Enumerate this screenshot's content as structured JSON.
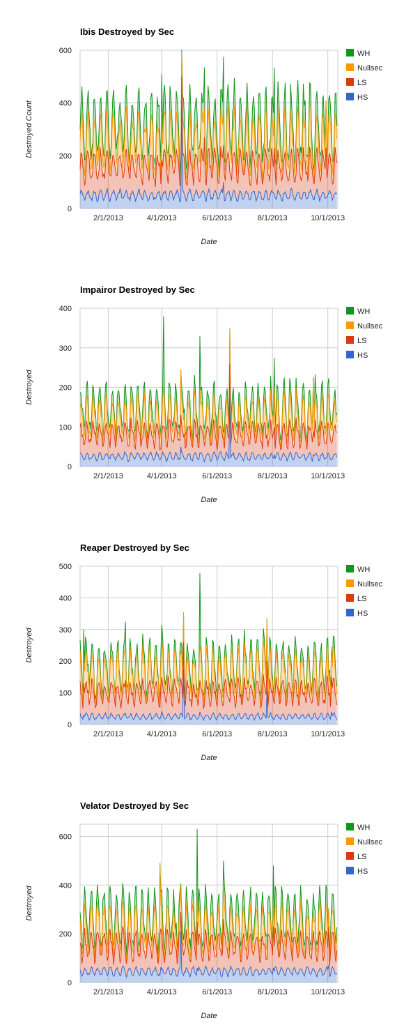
{
  "legend_position": "right",
  "chart_data": [
    {
      "type": "area",
      "stacked": true,
      "title": "Ibis Destroyed by Sec",
      "xlabel": "Date",
      "ylabel": "Destroyed Count",
      "x_range": [
        "1/1/2013",
        "10/12/2013"
      ],
      "x_ticks": [
        "2/1/2013",
        "4/1/2013",
        "6/1/2013",
        "8/1/2013",
        "10/1/2013"
      ],
      "y_ticks": [
        0,
        200,
        400,
        600
      ],
      "ylim": [
        0,
        600
      ],
      "grid": true,
      "baselines": {
        "HS": 50,
        "LS": 160,
        "Nullsec": 250,
        "WH": 290
      },
      "spikes": [
        {
          "date": "4/1/2013",
          "HS": 35,
          "LS": 185,
          "Nullsec": 370,
          "WH": 510
        },
        {
          "date": "4/23/2013",
          "HS": 400,
          "LS": 500,
          "Nullsec": 590,
          "WH": 600
        },
        {
          "date": "5/18/2013",
          "HS": 60,
          "LS": 270,
          "Nullsec": 380,
          "WH": 535
        },
        {
          "date": "6/8/2013",
          "HS": 100,
          "LS": 240,
          "Nullsec": 370,
          "WH": 575
        },
        {
          "date": "8/3/2013",
          "HS": 55,
          "LS": 230,
          "Nullsec": 340,
          "WH": 535
        },
        {
          "date": "9/29/2013",
          "HS": 40,
          "LS": 230,
          "Nullsec": 410,
          "WH": 410
        }
      ],
      "series": [
        {
          "name": "WH",
          "color": "#109618"
        },
        {
          "name": "Nullsec",
          "color": "#ff9900"
        },
        {
          "name": "LS",
          "color": "#dc3912"
        },
        {
          "name": "HS",
          "color": "#3366cc"
        }
      ]
    },
    {
      "type": "area",
      "stacked": true,
      "title": "Impairor Destroyed by Sec",
      "xlabel": "Date",
      "ylabel": "Destroyed",
      "x_range": [
        "1/1/2013",
        "10/12/2013"
      ],
      "x_ticks": [
        "2/1/2013",
        "4/1/2013",
        "6/1/2013",
        "8/1/2013",
        "10/1/2013"
      ],
      "y_ticks": [
        0,
        100,
        200,
        300,
        400
      ],
      "ylim": [
        0,
        400
      ],
      "grid": true,
      "baselines": {
        "HS": 25,
        "LS": 80,
        "Nullsec": 120,
        "WH": 135
      },
      "spikes": [
        {
          "date": "4/3/2013",
          "HS": 30,
          "LS": 100,
          "Nullsec": 200,
          "WH": 380
        },
        {
          "date": "4/22/2013",
          "HS": 50,
          "LS": 130,
          "Nullsec": 245,
          "WH": 245
        },
        {
          "date": "5/13/2013",
          "HS": 35,
          "LS": 100,
          "Nullsec": 200,
          "WH": 330
        },
        {
          "date": "6/15/2013",
          "HS": 175,
          "LS": 260,
          "Nullsec": 350,
          "WH": 350
        },
        {
          "date": "8/3/2013",
          "HS": 30,
          "LS": 100,
          "Nullsec": 200,
          "WH": 275
        },
        {
          "date": "9/15/2013",
          "HS": 30,
          "LS": 90,
          "Nullsec": 225,
          "WH": 225
        }
      ],
      "series": [
        {
          "name": "WH",
          "color": "#109618"
        },
        {
          "name": "Nullsec",
          "color": "#ff9900"
        },
        {
          "name": "LS",
          "color": "#dc3912"
        },
        {
          "name": "HS",
          "color": "#3366cc"
        }
      ]
    },
    {
      "type": "area",
      "stacked": true,
      "title": "Reaper Destroyed by Sec",
      "xlabel": "Date",
      "ylabel": "Destroyed",
      "x_range": [
        "1/1/2013",
        "10/12/2013"
      ],
      "x_ticks": [
        "2/1/2013",
        "4/1/2013",
        "6/1/2013",
        "8/1/2013",
        "10/1/2013"
      ],
      "y_ticks": [
        0,
        100,
        200,
        300,
        400,
        500
      ],
      "ylim": [
        0,
        500
      ],
      "grid": true,
      "baselines": {
        "HS": 25,
        "LS": 100,
        "Nullsec": 160,
        "WH": 175
      },
      "spikes": [
        {
          "date": "1/5/2013",
          "HS": 30,
          "LS": 130,
          "Nullsec": 200,
          "WH": 300
        },
        {
          "date": "2/20/2013",
          "HS": 35,
          "LS": 140,
          "Nullsec": 240,
          "WH": 325
        },
        {
          "date": "4/1/2013",
          "HS": 40,
          "LS": 150,
          "Nullsec": 250,
          "WH": 315
        },
        {
          "date": "4/25/2013",
          "HS": 175,
          "LS": 260,
          "Nullsec": 355,
          "WH": 355
        },
        {
          "date": "5/13/2013",
          "HS": 40,
          "LS": 140,
          "Nullsec": 250,
          "WH": 478
        },
        {
          "date": "7/26/2013",
          "HS": 105,
          "LS": 200,
          "Nullsec": 335,
          "WH": 335
        },
        {
          "date": "10/5/2013",
          "HS": 40,
          "LS": 150,
          "Nullsec": 245,
          "WH": 245
        }
      ],
      "series": [
        {
          "name": "WH",
          "color": "#109618"
        },
        {
          "name": "Nullsec",
          "color": "#ff9900"
        },
        {
          "name": "LS",
          "color": "#dc3912"
        },
        {
          "name": "HS",
          "color": "#3366cc"
        }
      ]
    },
    {
      "type": "area",
      "stacked": true,
      "title": "Velator Destroyed by Sec",
      "xlabel": "Date",
      "ylabel": "Destroyed",
      "x_range": [
        "1/1/2013",
        "10/12/2013"
      ],
      "x_ticks": [
        "2/1/2013",
        "4/1/2013",
        "6/1/2013",
        "8/1/2013",
        "10/1/2013"
      ],
      "y_ticks": [
        0,
        200,
        400,
        600
      ],
      "ylim": [
        0,
        650
      ],
      "grid": true,
      "baselines": {
        "HS": 45,
        "LS": 150,
        "Nullsec": 215,
        "WH": 245
      },
      "spikes": [
        {
          "date": "3/30/2013",
          "HS": 30,
          "LS": 200,
          "Nullsec": 490,
          "WH": 490
        },
        {
          "date": "4/22/2013",
          "HS": 210,
          "LS": 290,
          "Nullsec": 400,
          "WH": 405
        },
        {
          "date": "5/10/2013",
          "HS": 60,
          "LS": 250,
          "Nullsec": 350,
          "WH": 630
        },
        {
          "date": "6/8/2013",
          "HS": 60,
          "LS": 260,
          "Nullsec": 420,
          "WH": 500
        },
        {
          "date": "8/2/2013",
          "HS": 60,
          "LS": 230,
          "Nullsec": 340,
          "WH": 480
        },
        {
          "date": "10/2/2013",
          "HS": 70,
          "LS": 230,
          "Nullsec": 300,
          "WH": 305
        }
      ],
      "series": [
        {
          "name": "WH",
          "color": "#109618"
        },
        {
          "name": "Nullsec",
          "color": "#ff9900"
        },
        {
          "name": "LS",
          "color": "#dc3912"
        },
        {
          "name": "HS",
          "color": "#3366cc"
        }
      ]
    }
  ]
}
